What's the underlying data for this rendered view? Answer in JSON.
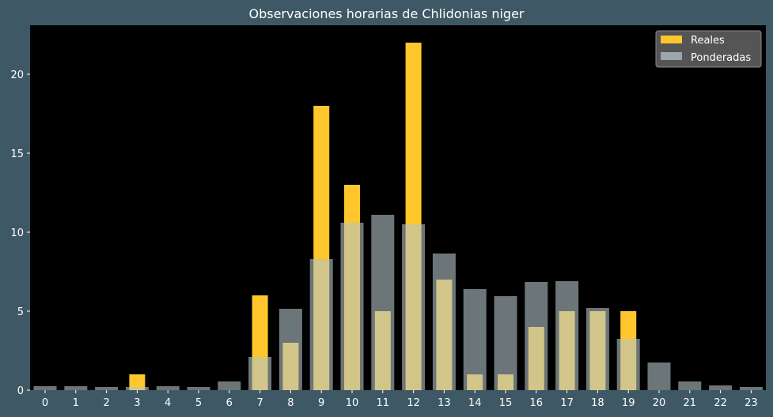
{
  "chart_data": {
    "type": "bar",
    "title": "Observaciones horarias de Chlidonias niger",
    "xlabel": "",
    "ylabel": "",
    "categories": [
      "0",
      "1",
      "2",
      "3",
      "4",
      "5",
      "6",
      "7",
      "8",
      "9",
      "10",
      "11",
      "12",
      "13",
      "14",
      "15",
      "16",
      "17",
      "18",
      "19",
      "20",
      "21",
      "22",
      "23"
    ],
    "series": [
      {
        "name": "Reales",
        "color": "#ffc72c",
        "values": [
          0,
          0,
          0,
          1,
          0,
          0,
          0,
          6,
          3,
          18,
          13,
          5,
          22,
          7,
          1,
          1,
          4,
          5,
          5,
          5,
          0,
          0,
          0,
          0
        ]
      },
      {
        "name": "Ponderadas",
        "color": "#b4c3c8",
        "opacity": 0.6,
        "values": [
          0.25,
          0.25,
          0.2,
          0.2,
          0.25,
          0.2,
          0.55,
          2.1,
          5.15,
          8.3,
          10.6,
          11.1,
          10.5,
          8.65,
          6.4,
          5.95,
          6.85,
          6.9,
          5.2,
          3.25,
          1.75,
          0.55,
          0.3,
          0.2
        ]
      }
    ],
    "yticks": [
      0,
      5,
      10,
      15,
      20
    ],
    "ylim": [
      0,
      23.1
    ],
    "grid": false,
    "legend_position": "top-right",
    "colors": {
      "figure_background": "#3f5866",
      "plot_background": "#000000",
      "text": "#ffffff",
      "legend_background": "#555555"
    }
  }
}
